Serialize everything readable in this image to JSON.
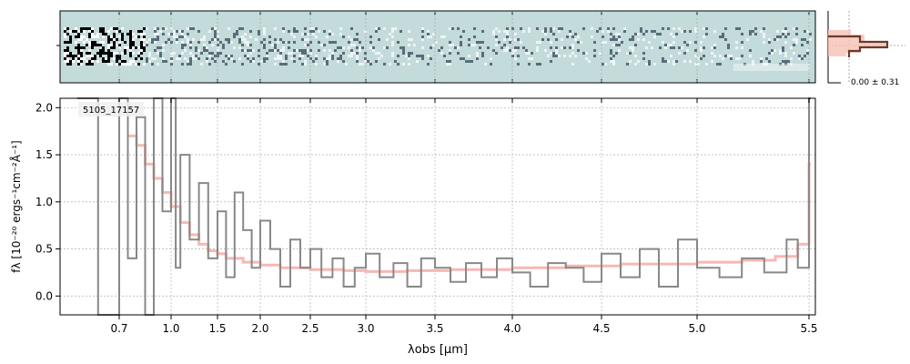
{
  "chart_data": {
    "type": "line",
    "label": "5105_17157",
    "xlabel": "λobs [μm]",
    "ylabel": "fλ [10⁻²⁰ ergs⁻¹cm⁻²Å⁻¹]",
    "xscale": "reciprocal-like (wavelength axis compressed at long end)",
    "xlim": [
      0.56,
      5.52
    ],
    "ylim": [
      -0.2,
      2.1
    ],
    "grid": true,
    "x_ticks": [
      "0.7",
      "1.0",
      "1.5",
      "2.0",
      "2.5",
      "3.0",
      "3.5",
      "4.0",
      "4.5",
      "5.0",
      "5.5"
    ],
    "y_ticks": [
      "0.0",
      "0.5",
      "1.0",
      "1.5",
      "2.0"
    ],
    "series": [
      {
        "role": "observed-spectrum",
        "color": "#888888",
        "style": "steps",
        "x": [
          0.6,
          0.65,
          0.7,
          0.75,
          0.8,
          0.85,
          0.9,
          0.95,
          1.0,
          1.05,
          1.1,
          1.2,
          1.3,
          1.4,
          1.5,
          1.6,
          1.7,
          1.8,
          1.9,
          2.0,
          2.1,
          2.2,
          2.3,
          2.4,
          2.5,
          2.6,
          2.7,
          2.8,
          2.9,
          3.0,
          3.1,
          3.2,
          3.3,
          3.4,
          3.5,
          3.6,
          3.7,
          3.8,
          3.9,
          4.0,
          4.1,
          4.2,
          4.3,
          4.4,
          4.5,
          4.6,
          4.7,
          4.8,
          4.9,
          5.0,
          5.1,
          5.2,
          5.3,
          5.4,
          5.45,
          5.5
        ],
        "y": [
          2.1,
          -0.2,
          2.1,
          0.4,
          1.9,
          -0.2,
          2.1,
          0.9,
          2.1,
          0.3,
          1.5,
          0.6,
          1.2,
          0.4,
          0.9,
          0.2,
          1.1,
          0.7,
          0.3,
          0.8,
          0.5,
          0.1,
          0.6,
          0.3,
          0.5,
          0.2,
          0.4,
          0.1,
          0.3,
          0.45,
          0.2,
          0.35,
          0.1,
          0.4,
          0.3,
          0.15,
          0.35,
          0.2,
          0.4,
          0.25,
          0.1,
          0.35,
          0.3,
          0.15,
          0.45,
          0.2,
          0.5,
          0.1,
          0.6,
          0.3,
          0.2,
          0.4,
          0.25,
          0.6,
          0.3,
          2.1
        ]
      },
      {
        "role": "model-fit",
        "color": "#f4a09a",
        "style": "steps",
        "x": [
          0.75,
          0.8,
          0.85,
          0.9,
          0.95,
          1.0,
          1.1,
          1.2,
          1.3,
          1.4,
          1.5,
          1.6,
          1.8,
          2.0,
          2.2,
          2.5,
          2.8,
          3.0,
          3.3,
          3.6,
          4.0,
          4.3,
          4.6,
          5.0,
          5.2,
          5.35,
          5.45,
          5.5
        ],
        "y": [
          1.7,
          1.6,
          1.4,
          1.25,
          1.1,
          0.95,
          0.78,
          0.65,
          0.55,
          0.48,
          0.45,
          0.4,
          0.36,
          0.33,
          0.3,
          0.28,
          0.27,
          0.26,
          0.27,
          0.28,
          0.3,
          0.32,
          0.34,
          0.36,
          0.38,
          0.42,
          0.55,
          1.4
        ]
      }
    ],
    "spectrum_2d_strip": {
      "background": "#c4dbdb"
    },
    "side_histogram": {
      "label": "0.00 ± 0.31",
      "curve_color": "#6b3a2c",
      "fill_color": "#f5c0b5"
    }
  }
}
